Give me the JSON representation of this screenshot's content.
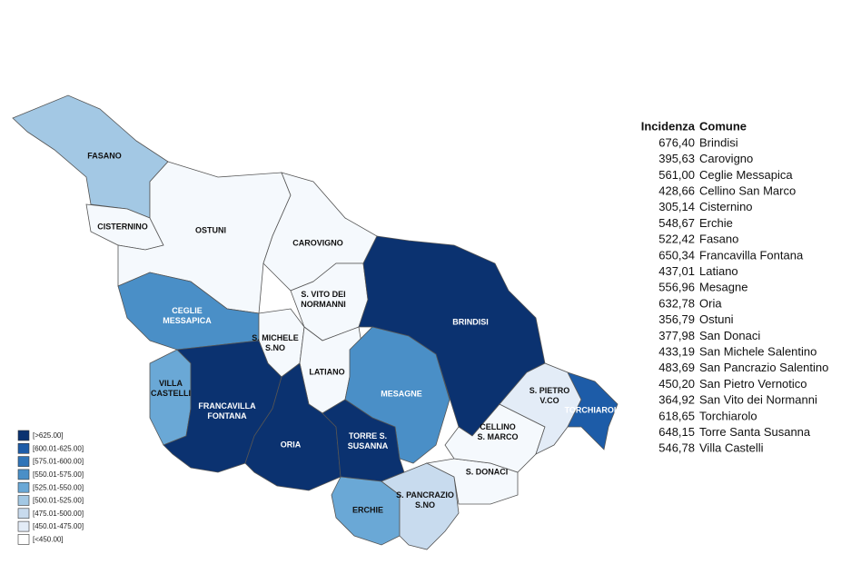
{
  "map": {
    "regions": [
      {
        "lines": [
          "FASANO"
        ],
        "color": "#a3c8e4"
      },
      {
        "lines": [
          "CISTERNINO"
        ],
        "color": "#f5f9fd"
      },
      {
        "lines": [
          "OSTUNI"
        ],
        "color": "#f5f9fd"
      },
      {
        "lines": [
          "CAROVIGNO"
        ],
        "color": "#f5f9fd"
      },
      {
        "lines": [
          "S. VITO DEI",
          "NORMANNI"
        ],
        "color": "#f5f9fd"
      },
      {
        "lines": [
          "BRINDISI"
        ],
        "color": "#0b3270"
      },
      {
        "lines": [
          "CEGLIE",
          "MESSAPICA"
        ],
        "color": "#4a8fc7"
      },
      {
        "lines": [
          "S. MICHELE",
          "S.NO"
        ],
        "color": "#f5f9fd"
      },
      {
        "lines": [
          "LATIANO"
        ],
        "color": "#f5f9fd"
      },
      {
        "lines": [
          "MESAGNE"
        ],
        "color": "#4a8fc7"
      },
      {
        "lines": [
          "VILLA",
          "CASTELLI"
        ],
        "color": "#6aa8d6"
      },
      {
        "lines": [
          "FRANCAVILLA",
          "FONTANA"
        ],
        "color": "#0b3270"
      },
      {
        "lines": [
          "ORIA"
        ],
        "color": "#0b3270"
      },
      {
        "lines": [
          "TORRE S.",
          "SUSANNA"
        ],
        "color": "#0b3270"
      },
      {
        "lines": [
          "ERCHIE"
        ],
        "color": "#6aa8d6"
      },
      {
        "lines": [
          "S. PANCRAZIO",
          "S.NO"
        ],
        "color": "#c8dbee"
      },
      {
        "lines": [
          "S. DONACI"
        ],
        "color": "#f5f9fd"
      },
      {
        "lines": [
          "CELLINO",
          "S. MARCO"
        ],
        "color": "#f5f9fd"
      },
      {
        "lines": [
          "S. PIETRO",
          "V.CO"
        ],
        "color": "#e3ecf7"
      },
      {
        "lines": [
          "TORCHIAROLO"
        ],
        "color": "#1d5ca8"
      }
    ]
  },
  "legend": {
    "items": [
      {
        "label": "[>625.00]",
        "color": "#0b3270"
      },
      {
        "label": "[600.01-625.00]",
        "color": "#1d5ca8"
      },
      {
        "label": "[575.01-600.00]",
        "color": "#2f74b8"
      },
      {
        "label": "[550.01-575.00]",
        "color": "#4a8fc7"
      },
      {
        "label": "[525.01-550.00]",
        "color": "#6aa8d6"
      },
      {
        "label": "[500.01-525.00]",
        "color": "#a3c8e4"
      },
      {
        "label": "[475.01-500.00]",
        "color": "#c8dbee"
      },
      {
        "label": "[450.01-475.00]",
        "color": "#e3ecf7"
      },
      {
        "label": "[<450.00]",
        "color": "#ffffff"
      }
    ]
  },
  "table": {
    "headers": [
      "Incidenza",
      "Comune"
    ],
    "rows": [
      [
        "676,40",
        "Brindisi"
      ],
      [
        "395,63",
        "Carovigno"
      ],
      [
        "561,00",
        "Ceglie Messapica"
      ],
      [
        "428,66",
        "Cellino San Marco"
      ],
      [
        "305,14",
        "Cisternino"
      ],
      [
        "548,67",
        "Erchie"
      ],
      [
        "522,42",
        "Fasano"
      ],
      [
        "650,34",
        "Francavilla Fontana"
      ],
      [
        "437,01",
        "Latiano"
      ],
      [
        "556,96",
        "Mesagne"
      ],
      [
        "632,78",
        "Oria"
      ],
      [
        "356,79",
        "Ostuni"
      ],
      [
        "377,98",
        "San Donaci"
      ],
      [
        "433,19",
        "San Michele Salentino"
      ],
      [
        "483,69",
        "San Pancrazio Salentino"
      ],
      [
        "450,20",
        "San Pietro Vernotico"
      ],
      [
        "364,92",
        "San Vito dei Normanni"
      ],
      [
        "618,65",
        "Torchiarolo"
      ],
      [
        "648,15",
        "Torre Santa Susanna"
      ],
      [
        "546,78",
        "Villa Castelli"
      ]
    ]
  }
}
